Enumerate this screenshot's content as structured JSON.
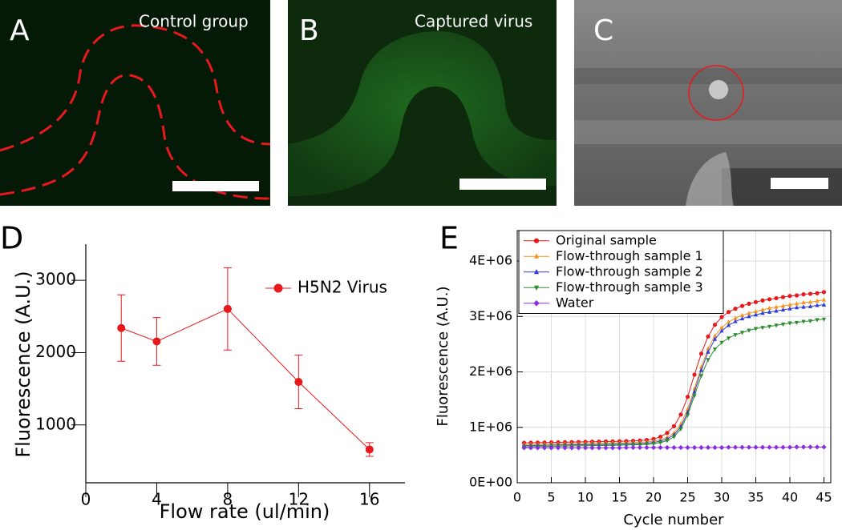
{
  "panels": [
    {
      "letter": "A",
      "caption": "Control group"
    },
    {
      "letter": "B",
      "caption": "Captured virus"
    },
    {
      "letter": "C"
    }
  ],
  "chart_data": [
    {
      "type": "line",
      "label": "D",
      "x_label": "Flow rate (ul/min)",
      "y_label": "Fluorescence (A.U.)",
      "x": [
        2,
        4,
        8,
        12,
        16
      ],
      "series": [
        {
          "name": "H5N2 Virus",
          "color": "#e8191c",
          "marker": "circle",
          "values": [
            2340,
            2155,
            2605,
            1595,
            660
          ],
          "errors": [
            460,
            330,
            570,
            370,
            95
          ]
        }
      ],
      "xlim": [
        0,
        18
      ],
      "xticks": [
        0,
        4,
        8,
        12,
        16
      ],
      "ylim": [
        200,
        3500
      ],
      "yticks": [
        1000,
        2000,
        3000
      ],
      "grid": false,
      "legend": "upper right"
    },
    {
      "type": "line",
      "label": "E",
      "x_label": "Cycle number",
      "y_label": "Fluorescence (A.U.)",
      "x": [
        1,
        2,
        3,
        4,
        5,
        6,
        7,
        8,
        9,
        10,
        11,
        12,
        13,
        14,
        15,
        16,
        17,
        18,
        19,
        20,
        21,
        22,
        23,
        24,
        25,
        26,
        27,
        28,
        29,
        30,
        31,
        32,
        33,
        34,
        35,
        36,
        37,
        38,
        39,
        40,
        41,
        42,
        43,
        44,
        45
      ],
      "series": [
        {
          "name": "Original sample",
          "color": "#e8191c",
          "marker": "circle",
          "values": [
            720000,
            722000,
            724000,
            726000,
            728000,
            730000,
            732000,
            734000,
            736000,
            738000,
            740000,
            742000,
            744000,
            746000,
            748000,
            752000,
            756000,
            762000,
            772000,
            790000,
            830000,
            900000,
            1020000,
            1230000,
            1550000,
            1950000,
            2330000,
            2640000,
            2850000,
            2990000,
            3080000,
            3140000,
            3190000,
            3230000,
            3260000,
            3290000,
            3310000,
            3330000,
            3350000,
            3370000,
            3380000,
            3400000,
            3410000,
            3420000,
            3440000
          ]
        },
        {
          "name": "Flow-through sample 1",
          "color": "#f7941d",
          "marker": "triangle-up",
          "values": [
            690000,
            692000,
            694000,
            696000,
            698000,
            700000,
            702000,
            704000,
            706000,
            708000,
            710000,
            712000,
            714000,
            716000,
            718000,
            721000,
            724000,
            729000,
            736000,
            750000,
            775000,
            820000,
            900000,
            1060000,
            1330000,
            1700000,
            2090000,
            2420000,
            2650000,
            2800000,
            2900000,
            2970000,
            3020000,
            3060000,
            3090000,
            3120000,
            3150000,
            3170000,
            3190000,
            3210000,
            3230000,
            3250000,
            3260000,
            3280000,
            3300000
          ]
        },
        {
          "name": "Flow-through sample 2",
          "color": "#2e3bd6",
          "marker": "triangle-up",
          "values": [
            670000,
            672000,
            674000,
            676000,
            678000,
            680000,
            682000,
            684000,
            686000,
            688000,
            690000,
            692000,
            694000,
            696000,
            698000,
            701000,
            704000,
            708000,
            715000,
            727000,
            750000,
            790000,
            865000,
            1010000,
            1270000,
            1640000,
            2030000,
            2360000,
            2590000,
            2740000,
            2840000,
            2910000,
            2960000,
            3000000,
            3030000,
            3060000,
            3080000,
            3100000,
            3120000,
            3140000,
            3160000,
            3170000,
            3180000,
            3200000,
            3210000
          ]
        },
        {
          "name": "Flow-through sample 3",
          "color": "#2e8b2e",
          "marker": "triangle-down",
          "values": [
            650000,
            652000,
            654000,
            656000,
            658000,
            660000,
            662000,
            664000,
            666000,
            668000,
            670000,
            672000,
            674000,
            676000,
            678000,
            681000,
            684000,
            688000,
            694000,
            704000,
            724000,
            760000,
            830000,
            970000,
            1220000,
            1570000,
            1930000,
            2220000,
            2410000,
            2530000,
            2610000,
            2670000,
            2710000,
            2750000,
            2780000,
            2800000,
            2820000,
            2840000,
            2860000,
            2880000,
            2890000,
            2910000,
            2920000,
            2940000,
            2950000
          ]
        },
        {
          "name": "Water",
          "color": "#8a2be2",
          "marker": "diamond",
          "values": [
            630000,
            630000,
            630000,
            630000,
            630000,
            630000,
            630000,
            630000,
            630000,
            630000,
            630000,
            630000,
            630000,
            630000,
            630000,
            635000,
            635000,
            635000,
            635000,
            635000,
            635000,
            635000,
            635000,
            635000,
            635000,
            635000,
            635000,
            635000,
            635000,
            635000,
            640000,
            640000,
            640000,
            640000,
            640000,
            640000,
            640000,
            640000,
            640000,
            640000,
            645000,
            645000,
            645000,
            645000,
            645000
          ]
        }
      ],
      "xlim": [
        0,
        46
      ],
      "xticks": [
        0,
        5,
        10,
        15,
        20,
        25,
        30,
        35,
        40,
        45
      ],
      "ylim": [
        0,
        4550000
      ],
      "yticks": [
        {
          "value": 0,
          "label": "0E+00"
        },
        {
          "value": 1000000,
          "label": "1E+06"
        },
        {
          "value": 2000000,
          "label": "2E+06"
        },
        {
          "value": 3000000,
          "label": "3E+06"
        },
        {
          "value": 4000000,
          "label": "4E+06"
        }
      ],
      "grid": true,
      "legend": "upper left"
    }
  ]
}
